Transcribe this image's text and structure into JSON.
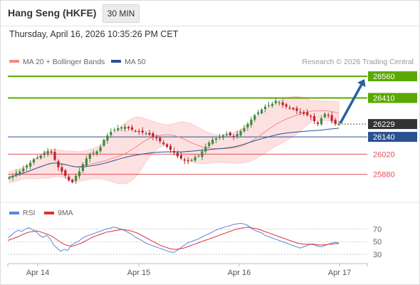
{
  "header": {
    "symbol": "Hang Seng (HKFE)",
    "timeframe": "30 MIN",
    "timestamp": "Thursday, April 16, 2026 10:35:26 PM CET"
  },
  "credit": "Research © 2026 Trading Central",
  "colors": {
    "candle_up": "#3f8a3f",
    "candle_down": "#c0222b",
    "bollinger_fill": "#fde1e1",
    "ma20": "#f08080",
    "ma50": "#2a5291",
    "resistance": "#5aa800",
    "pivot": "#2a5291",
    "support": "#e0525a",
    "last_price": "#333333",
    "rsi": "#5b87d6",
    "rsi_ma": "#e03030",
    "arrow": "#2a5fa2"
  },
  "chart_data": [
    {
      "type": "candlestick",
      "legend": [
        {
          "name": "MA 20 + Bollinger Bands",
          "color": "#f28b82"
        },
        {
          "name": "MA 50",
          "color": "#2a5291"
        }
      ],
      "x_ticks": [
        "Apr 14",
        "Apr 15",
        "Apr 16",
        "Apr 17"
      ],
      "ylim": [
        25730,
        26620
      ],
      "levels": [
        {
          "label": "26560",
          "value": 26560,
          "kind": "resistance"
        },
        {
          "label": "26410",
          "value": 26410,
          "kind": "resistance"
        },
        {
          "label": "26229",
          "value": 26229,
          "kind": "last"
        },
        {
          "label": "26140",
          "value": 26140,
          "kind": "pivot"
        },
        {
          "label": "26020",
          "value": 26020,
          "kind": "support"
        },
        {
          "label": "25880",
          "value": 25880,
          "kind": "support"
        }
      ],
      "close_path": [
        25860,
        25870,
        25890,
        25900,
        25920,
        25940,
        25960,
        25985,
        25995,
        26010,
        26030,
        26040,
        26030,
        25980,
        25930,
        25900,
        25870,
        25840,
        25825,
        25870,
        25900,
        25950,
        25990,
        26020,
        26030,
        26040,
        26070,
        26120,
        26150,
        26175,
        26190,
        26200,
        26205,
        26210,
        26200,
        26190,
        26180,
        26175,
        26170,
        26165,
        26155,
        26140,
        26130,
        26110,
        26090,
        26070,
        26050,
        26030,
        26005,
        25990,
        25975,
        25970,
        25980,
        26000,
        26010,
        26040,
        26070,
        26100,
        26120,
        26130,
        26140,
        26150,
        26160,
        26150,
        26140,
        26160,
        26180,
        26200,
        26230,
        26260,
        26290,
        26310,
        26330,
        26350,
        26360,
        26370,
        26390,
        26380,
        26360,
        26350,
        26340,
        26330,
        26320,
        26310,
        26300,
        26290,
        26280,
        26250,
        26230,
        26270,
        26300,
        26290,
        26250,
        26230,
        26229
      ],
      "forecast_target": 26560
    },
    {
      "type": "line",
      "legend": [
        {
          "name": "RSI",
          "color": "#5b87d6"
        },
        {
          "name": "9MA",
          "color": "#e03030"
        }
      ],
      "y_ticks": [
        70,
        50,
        30
      ],
      "ylim": [
        20,
        85
      ],
      "rsi": [
        56,
        60,
        65,
        68,
        66,
        70,
        72,
        69,
        66,
        60,
        57,
        60,
        55,
        45,
        40,
        35,
        38,
        36,
        44,
        48,
        50,
        55,
        58,
        60,
        62,
        64,
        66,
        68,
        70,
        71,
        73,
        72,
        70,
        68,
        65,
        62,
        58,
        55,
        52,
        48,
        46,
        44,
        42,
        40,
        38,
        36,
        34,
        33,
        36,
        40,
        44,
        48,
        50,
        52,
        54,
        57,
        60,
        62,
        65,
        68,
        70,
        72,
        74,
        75,
        77,
        78,
        79,
        78,
        76,
        72,
        68,
        66,
        64,
        60,
        58,
        56,
        54,
        52,
        50,
        48,
        46,
        44,
        42,
        40,
        42,
        44,
        46,
        45,
        43,
        42,
        44,
        46,
        48,
        49,
        48
      ],
      "ma9": [
        52,
        54,
        56,
        58,
        61,
        63,
        65,
        66,
        67,
        66,
        64,
        62,
        60,
        57,
        53,
        49,
        46,
        44,
        43,
        44,
        46,
        48,
        51,
        54,
        57,
        59,
        61,
        63,
        65,
        66,
        67,
        68,
        69,
        69,
        68,
        67,
        65,
        63,
        60,
        57,
        54,
        51,
        48,
        45,
        43,
        41,
        39,
        38,
        38,
        39,
        40,
        42,
        44,
        46,
        48,
        50,
        52,
        54,
        56,
        58,
        60,
        62,
        64,
        66,
        68,
        70,
        71,
        72,
        73,
        72,
        71,
        70,
        68,
        66,
        64,
        62,
        60,
        58,
        56,
        54,
        52,
        50,
        48,
        47,
        46,
        46,
        46,
        46,
        45,
        45,
        45,
        46,
        46,
        47,
        47
      ]
    }
  ]
}
